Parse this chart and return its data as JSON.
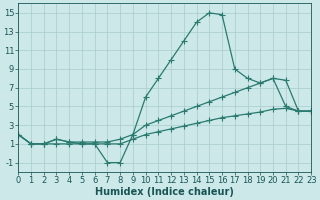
{
  "xlabel": "Humidex (Indice chaleur)",
  "ylabel": "",
  "xlim": [
    0,
    23
  ],
  "ylim": [
    -2,
    16
  ],
  "xticks": [
    0,
    1,
    2,
    3,
    4,
    5,
    6,
    7,
    8,
    9,
    10,
    11,
    12,
    13,
    14,
    15,
    16,
    17,
    18,
    19,
    20,
    21,
    22,
    23
  ],
  "yticks": [
    -1,
    1,
    3,
    5,
    7,
    9,
    11,
    13,
    15
  ],
  "bg_color": "#cce8e8",
  "line_color": "#2a7a70",
  "series": [
    {
      "x": [
        0,
        1,
        2,
        3,
        4,
        5,
        6,
        7,
        8,
        9,
        10,
        11,
        12,
        13,
        14,
        15,
        16,
        17,
        18,
        19,
        20,
        21,
        22,
        23
      ],
      "y": [
        2,
        1,
        1,
        1,
        1,
        1,
        1,
        -1,
        -1,
        2,
        6,
        8,
        10,
        12,
        14,
        15,
        14.8,
        9,
        8,
        7.5,
        8,
        5,
        4.5,
        4.5
      ]
    },
    {
      "x": [
        0,
        1,
        2,
        3,
        4,
        5,
        6,
        7,
        8,
        9,
        10,
        11,
        12,
        13,
        14,
        15,
        16,
        17,
        18,
        19,
        20,
        21,
        22,
        23
      ],
      "y": [
        2,
        1,
        1,
        1.5,
        1.2,
        1.2,
        1.2,
        1.2,
        1.5,
        2.0,
        3.0,
        3.5,
        4.0,
        4.5,
        5.0,
        5.5,
        6.0,
        6.5,
        7.0,
        7.5,
        8.0,
        7.8,
        4.5,
        4.5
      ]
    },
    {
      "x": [
        0,
        1,
        2,
        3,
        4,
        5,
        6,
        7,
        8,
        9,
        10,
        11,
        12,
        13,
        14,
        15,
        16,
        17,
        18,
        19,
        20,
        21,
        22,
        23
      ],
      "y": [
        2,
        1,
        1,
        1.5,
        1.2,
        1.0,
        1.0,
        1.0,
        1.0,
        1.5,
        2.0,
        2.3,
        2.6,
        2.9,
        3.2,
        3.5,
        3.8,
        4.0,
        4.2,
        4.4,
        4.7,
        4.8,
        4.5,
        4.5
      ]
    }
  ],
  "grid_color": "#a8cccc",
  "font_color": "#1a5555",
  "tick_font_size": 6,
  "label_font_size": 7,
  "marker": "+",
  "markersize": 4,
  "linewidth": 0.9
}
